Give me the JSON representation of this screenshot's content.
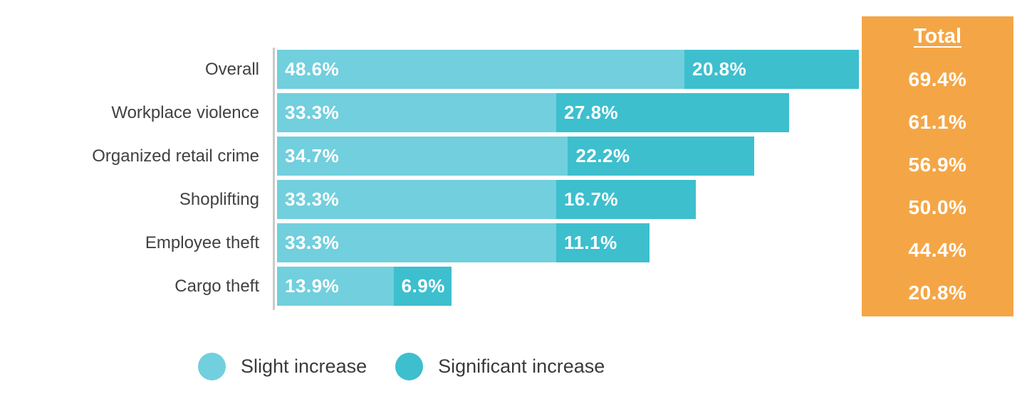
{
  "chart_data": {
    "type": "bar",
    "orientation": "horizontal",
    "stacked": true,
    "title": "",
    "xlabel": "",
    "ylabel": "",
    "grid": false,
    "legend_position": "bottom",
    "xlim": [
      0,
      70
    ],
    "categories": [
      "Overall",
      "Workplace violence",
      "Organized retail crime",
      "Shoplifting",
      "Employee theft",
      "Cargo theft"
    ],
    "series": [
      {
        "name": "Slight increase",
        "color": "#72CFDD",
        "values": [
          48.6,
          33.3,
          34.7,
          33.3,
          33.3,
          13.9
        ],
        "labels": [
          "48.6%",
          "33.3%",
          "34.7%",
          "33.3%",
          "33.3%",
          "13.9%"
        ]
      },
      {
        "name": "Significant increase",
        "color": "#3DBFCE",
        "values": [
          20.8,
          27.8,
          22.2,
          16.7,
          11.1,
          6.9
        ],
        "labels": [
          "20.8%",
          "27.8%",
          "22.2%",
          "16.7%",
          "11.1%",
          "6.9%"
        ]
      }
    ],
    "totals": {
      "label": "Total",
      "background": "#F4A646",
      "values": [
        69.4,
        61.1,
        56.9,
        50.0,
        44.4,
        20.8
      ],
      "labels": [
        "69.4%",
        "61.1%",
        "56.9%",
        "50.0%",
        "44.4%",
        "20.8%"
      ]
    },
    "value_label_color": "#FFFFFF",
    "category_label_color": "#414042",
    "axis_line_color": "#C9C9C9"
  }
}
